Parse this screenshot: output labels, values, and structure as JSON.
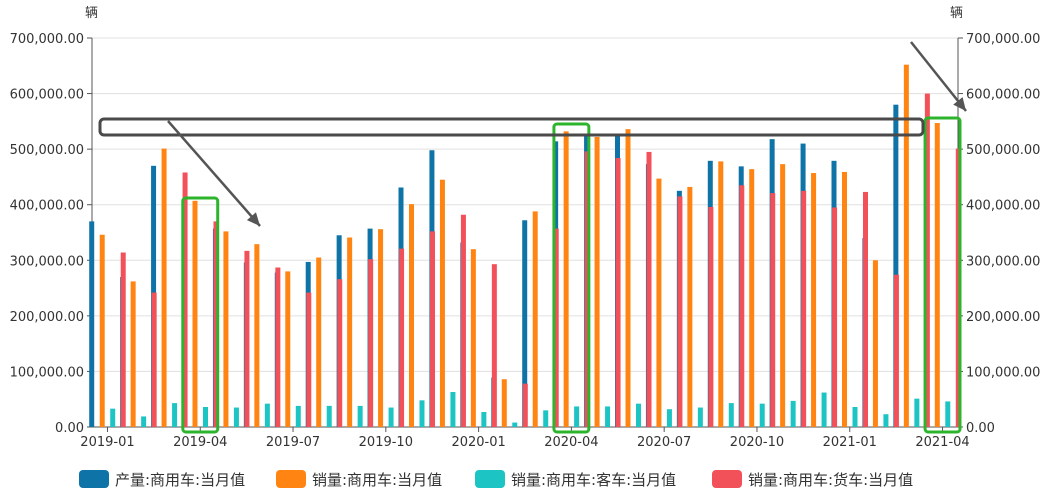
{
  "chart_data": {
    "type": "bar",
    "unit_left": "辆",
    "unit_right": "辆",
    "ylim": [
      0,
      700000
    ],
    "y_ticks": [
      "0.00",
      "100,000.00",
      "200,000.00",
      "300,000.00",
      "400,000.00",
      "500,000.00",
      "600,000.00",
      "700,000.00"
    ],
    "categories": [
      "2019-01",
      "2019-02",
      "2019-03",
      "2019-04",
      "2019-05",
      "2019-06",
      "2019-07",
      "2019-08",
      "2019-09",
      "2019-10",
      "2019-11",
      "2019-12",
      "2020-01",
      "2020-02",
      "2020-03",
      "2020-04",
      "2020-05",
      "2020-06",
      "2020-07",
      "2020-08",
      "2020-09",
      "2020-10",
      "2020-11",
      "2020-12",
      "2021-01",
      "2021-02",
      "2021-03",
      "2021-04"
    ],
    "x_tick_labels": [
      "2019-01",
      "2019-04",
      "2019-07",
      "2019-10",
      "2020-01",
      "2020-04",
      "2020-07",
      "2020-10",
      "2021-01",
      "2021-04"
    ],
    "legend_position": "bottom",
    "grid": true,
    "series": [
      {
        "name": "产量:商用车:当月值",
        "color": "#0E73A6",
        "values": [
          370000,
          270000,
          470000,
          392000,
          357000,
          296000,
          278000,
          297000,
          345000,
          357000,
          431000,
          498000,
          332000,
          89000,
          372000,
          514000,
          525000,
          527000,
          473000,
          425000,
          479000,
          469000,
          518000,
          510000,
          479000,
          340000,
          580000,
          521000
        ]
      },
      {
        "name": "销量:商用车:当月值",
        "color": "#FF8412",
        "values": [
          346000,
          262000,
          501000,
          407000,
          352000,
          329000,
          280000,
          305000,
          341000,
          356000,
          401000,
          445000,
          320000,
          86000,
          388000,
          532000,
          522000,
          536000,
          447000,
          432000,
          478000,
          464000,
          473000,
          457000,
          459000,
          300000,
          652000,
          547000
        ]
      },
      {
        "name": "销量:商用车:客车:当月值",
        "color": "#1CC4C4",
        "values": [
          33000,
          19000,
          43000,
          36000,
          35000,
          42000,
          38000,
          38000,
          38000,
          35000,
          48000,
          63000,
          27000,
          8000,
          30000,
          37000,
          37000,
          42000,
          32000,
          35000,
          43000,
          42000,
          47000,
          62000,
          36000,
          23000,
          51000,
          46000
        ]
      },
      {
        "name": "销量:商用车:货车:当月值",
        "color": "#F25159",
        "values": [
          314000,
          242000,
          458000,
          370000,
          317000,
          287000,
          242000,
          266000,
          302000,
          321000,
          352000,
          382000,
          293000,
          78000,
          357000,
          496000,
          484000,
          495000,
          415000,
          396000,
          435000,
          421000,
          425000,
          395000,
          423000,
          274000,
          600000,
          501000
        ]
      }
    ]
  }
}
